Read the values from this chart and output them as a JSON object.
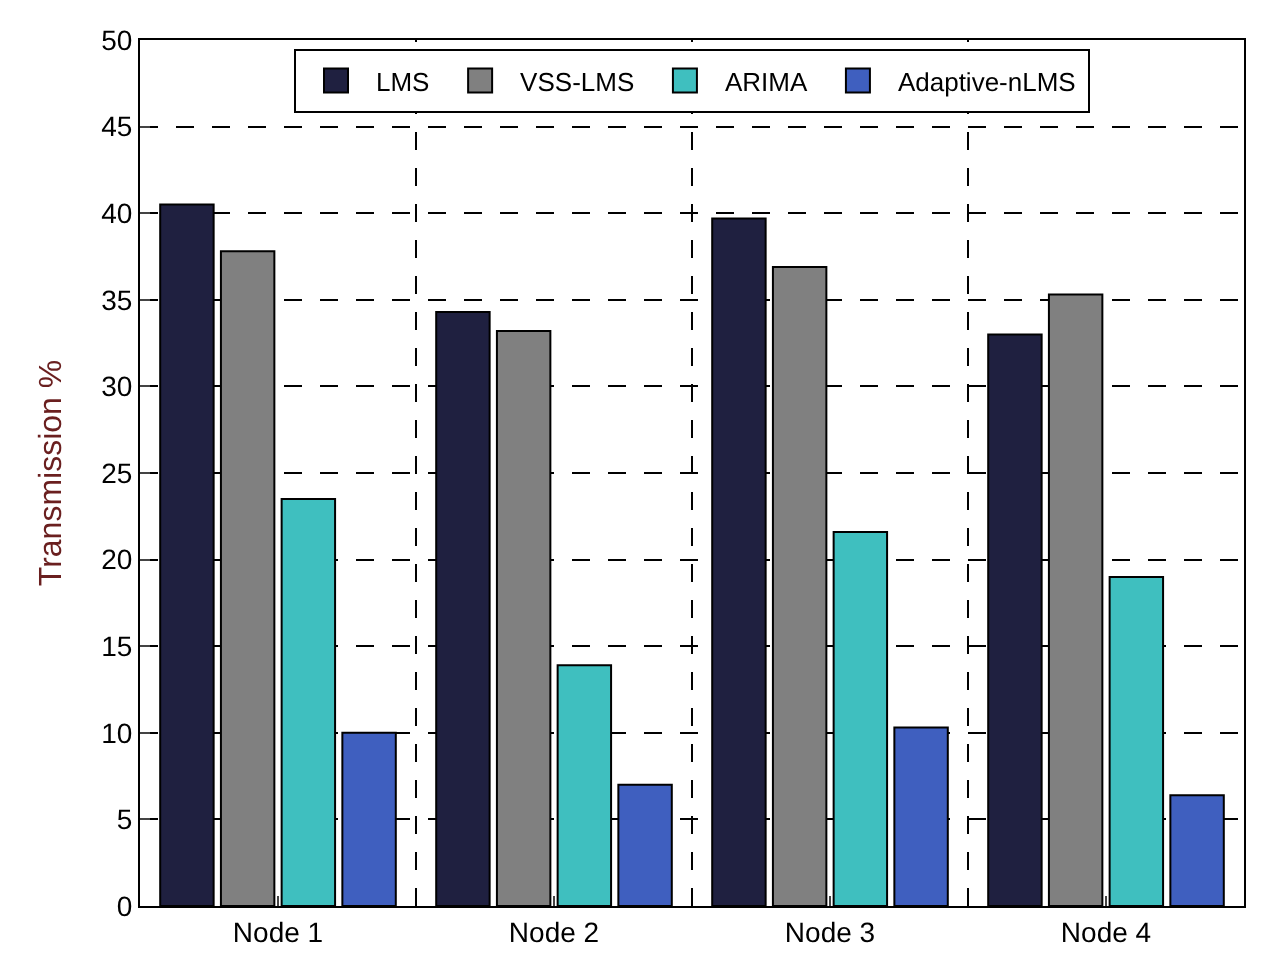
{
  "chart_data": {
    "type": "bar",
    "ylabel": "Transmission %",
    "categories": [
      "Node 1",
      "Node 2",
      "Node 3",
      "Node 4"
    ],
    "series": [
      {
        "name": "LMS",
        "color": "#1f2040",
        "values": [
          40.5,
          34.3,
          39.7,
          33.0
        ]
      },
      {
        "name": "VSS-LMS",
        "color": "#808080",
        "values": [
          37.8,
          33.2,
          36.9,
          35.3
        ]
      },
      {
        "name": "ARIMA",
        "color": "#3fbfbf",
        "values": [
          23.5,
          13.9,
          21.6,
          19.0
        ]
      },
      {
        "name": "Adaptive-nLMS",
        "color": "#3f5fbf",
        "values": [
          10.0,
          7.0,
          10.3,
          6.4
        ]
      }
    ],
    "ylim": [
      0,
      50
    ],
    "yticks": [
      0,
      5,
      10,
      15,
      20,
      25,
      30,
      35,
      40,
      45,
      50
    ],
    "grid": true,
    "legend": "top"
  }
}
